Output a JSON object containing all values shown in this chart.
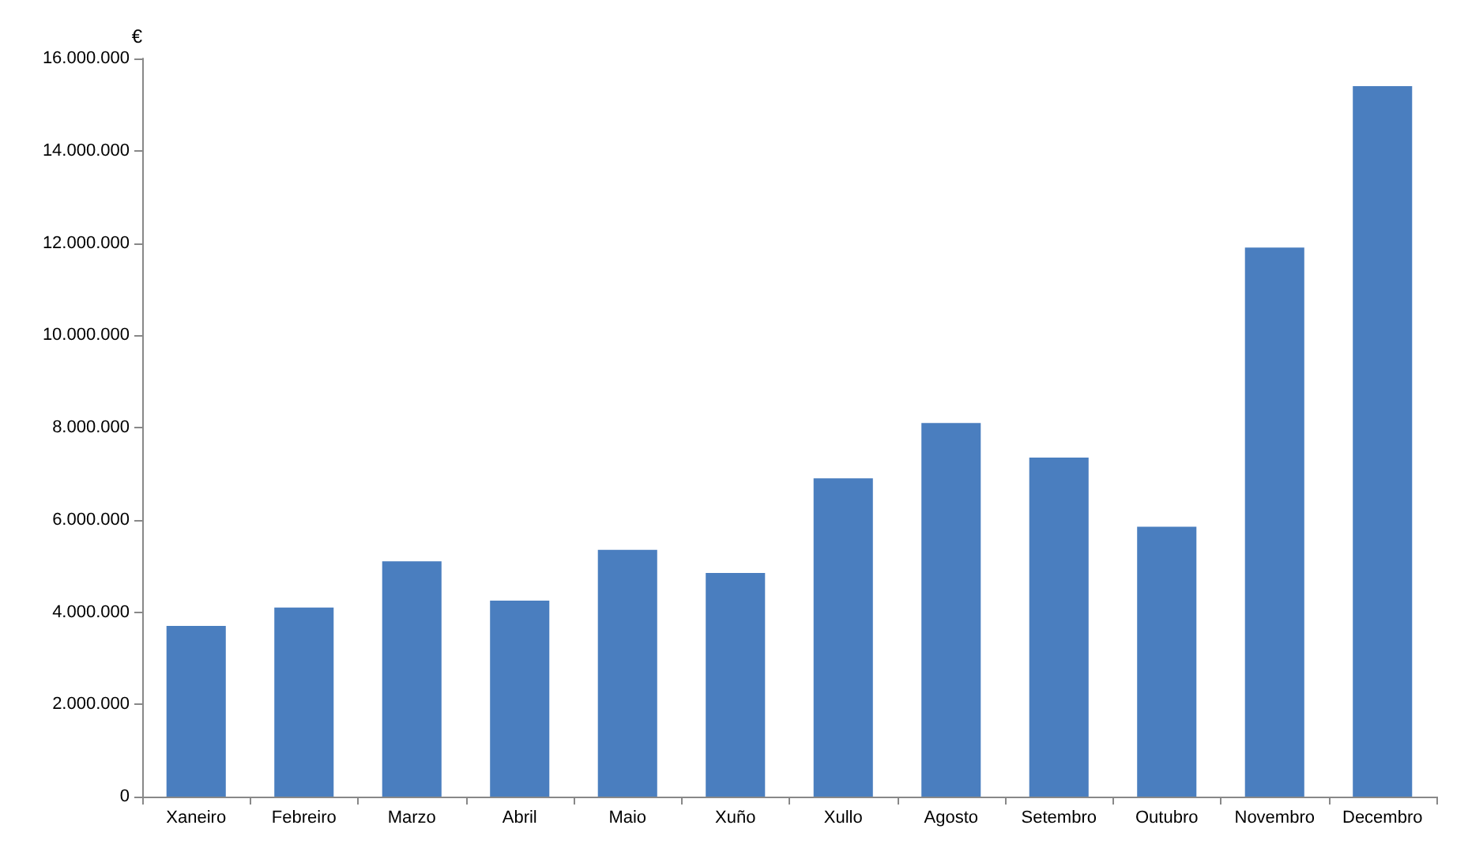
{
  "chart_data": {
    "type": "bar",
    "ylabel": "€",
    "categories": [
      "Xaneiro",
      "Febreiro",
      "Marzo",
      "Abril",
      "Maio",
      "Xuño",
      "Xullo",
      "Agosto",
      "Setembro",
      "Outubro",
      "Novembro",
      "Decembro"
    ],
    "values": [
      3700000,
      4100000,
      5100000,
      4250000,
      5350000,
      4850000,
      6900000,
      8100000,
      7350000,
      5850000,
      11900000,
      15400000
    ],
    "color": "#4a7ebf",
    "ylim": [
      0,
      16000000
    ],
    "yticks": [
      {
        "value": 0,
        "label": "0"
      },
      {
        "value": 2000000,
        "label": "2.000.000"
      },
      {
        "value": 4000000,
        "label": "4.000.000"
      },
      {
        "value": 6000000,
        "label": "6.000.000"
      },
      {
        "value": 8000000,
        "label": "8.000.000"
      },
      {
        "value": 10000000,
        "label": "10.000.000"
      },
      {
        "value": 12000000,
        "label": "12.000.000"
      },
      {
        "value": 14000000,
        "label": "14.000.000"
      },
      {
        "value": 16000000,
        "label": "16.000.000"
      }
    ],
    "grid": false
  }
}
